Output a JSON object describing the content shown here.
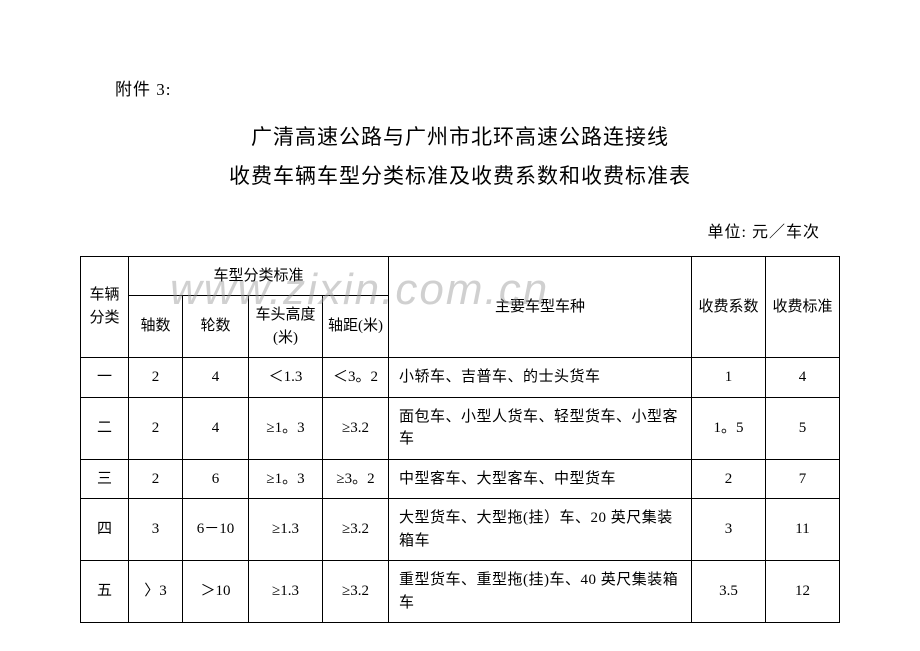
{
  "attachment": "附件 3:",
  "title_line1": "广清高速公路与广州市北环高速公路连接线",
  "title_line2": "收费车辆车型分类标准及收费系数和收费标准表",
  "unit": "单位: 元／车次",
  "watermark": "www.zixin.com.cn",
  "headers": {
    "vehicle_category": "车辆分类",
    "classification_std": "车型分类标准",
    "axle_count": "轴数",
    "wheel_count": "轮数",
    "head_height": "车头高度(米)",
    "axle_dist": "轴距(米)",
    "main_types": "主要车型车种",
    "fee_coef": "收费系数",
    "fee_std": "收费标准"
  },
  "rows": [
    {
      "cat": "一",
      "axle": "2",
      "wheel": "4",
      "height": "＜1.3",
      "dist": "＜3。2",
      "desc": "小轿车、吉普车、的士头货车",
      "coef": "1",
      "fee": "4"
    },
    {
      "cat": "二",
      "axle": "2",
      "wheel": "4",
      "height": "≥1。3",
      "dist": "≥3.2",
      "desc": "面包车、小型人货车、轻型货车、小型客车",
      "coef": "1。5",
      "fee": "5"
    },
    {
      "cat": "三",
      "axle": "2",
      "wheel": "6",
      "height": "≥1。3",
      "dist": "≥3。2",
      "desc": "中型客车、大型客车、中型货车",
      "coef": "2",
      "fee": "7"
    },
    {
      "cat": "四",
      "axle": "3",
      "wheel": "6－10",
      "height": "≥1.3",
      "dist": "≥3.2",
      "desc": "大型货车、大型拖(挂）车、20 英尺集装箱车",
      "coef": "3",
      "fee": "11"
    },
    {
      "cat": "五",
      "axle": "〉3",
      "wheel": "＞10",
      "height": "≥1.3",
      "dist": "≥3.2",
      "desc": "重型货车、重型拖(挂)车、40 英尺集装箱车",
      "coef": "3.5",
      "fee": "12"
    }
  ]
}
